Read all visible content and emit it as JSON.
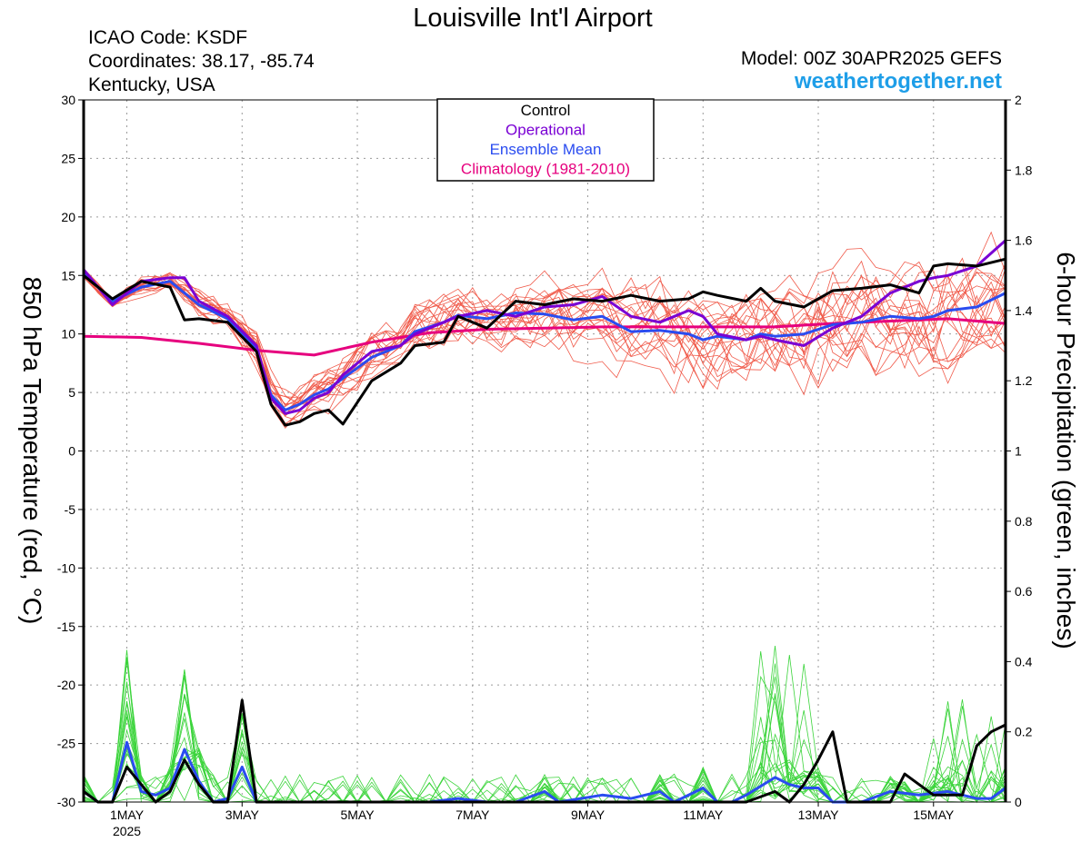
{
  "header": {
    "title": "Louisville Int'l Airport",
    "icao": "ICAO Code: KSDF",
    "coords": "Coordinates: 38.17, -85.74",
    "region": "Kentucky, USA",
    "model": "Model: 00Z 30APR2025 GEFS",
    "site": "weathertogether.net"
  },
  "colors": {
    "control": "#000000",
    "operational": "#7a00d4",
    "ensemble_mean": "#2a4cf0",
    "climatology": "#e6007e",
    "members_temp": "#f05a4a",
    "members_precip": "#3bd43b",
    "site": "#1e9ee8"
  },
  "chart_data": {
    "type": "line",
    "title": "Louisville Int'l Airport",
    "ylabel": "850 hPa Temperature (red, °C)",
    "y2label": "6-hour Precipitation (green, inches)",
    "ylim": [
      -30,
      30
    ],
    "y2lim": [
      0,
      2
    ],
    "yticks": [
      "30",
      "25",
      "20",
      "15",
      "10",
      "5",
      "0",
      "-5",
      "-10",
      "-15",
      "-20",
      "-25",
      "-30"
    ],
    "y2ticks": [
      "2",
      "1.8",
      "1.6",
      "1.4",
      "1.2",
      "1",
      "0.8",
      "0.6",
      "0.4",
      "0.2",
      "0"
    ],
    "xlim_days": [
      0,
      16
    ],
    "xticks": [
      {
        "label": "1MAY",
        "sub": "2025",
        "day": 0.75
      },
      {
        "label": "3MAY",
        "sub": "",
        "day": 2.75
      },
      {
        "label": "5MAY",
        "sub": "",
        "day": 4.75
      },
      {
        "label": "7MAY",
        "sub": "",
        "day": 6.75
      },
      {
        "label": "9MAY",
        "sub": "",
        "day": 8.75
      },
      {
        "label": "11MAY",
        "sub": "",
        "day": 10.75
      },
      {
        "label": "13MAY",
        "sub": "",
        "day": 12.75
      },
      {
        "label": "15MAY",
        "sub": "",
        "day": 14.75
      }
    ],
    "grid": true,
    "legend": {
      "position": "top-center",
      "entries": [
        {
          "name": "Control",
          "color": "#000000"
        },
        {
          "name": "Operational",
          "color": "#7a00d4"
        },
        {
          "name": "Ensemble Mean",
          "color": "#2a4cf0"
        },
        {
          "name": "Climatology (1981-2010)",
          "color": "#e6007e"
        }
      ]
    },
    "temperature": {
      "control": [
        [
          0,
          15
        ],
        [
          0.5,
          13
        ],
        [
          1,
          14.5
        ],
        [
          1.5,
          14
        ],
        [
          1.75,
          11.2
        ],
        [
          2,
          11.3
        ],
        [
          2.5,
          11
        ],
        [
          3,
          8.5
        ],
        [
          3.25,
          4
        ],
        [
          3.5,
          2.2
        ],
        [
          3.75,
          2.5
        ],
        [
          4,
          3.2
        ],
        [
          4.25,
          3.5
        ],
        [
          4.5,
          2.3
        ],
        [
          5,
          6
        ],
        [
          5.5,
          7.5
        ],
        [
          5.75,
          9
        ],
        [
          6.25,
          9.3
        ],
        [
          6.5,
          11.5
        ],
        [
          7,
          10.5
        ],
        [
          7.5,
          12.8
        ],
        [
          8,
          12.5
        ],
        [
          8.5,
          13
        ],
        [
          9,
          12.8
        ],
        [
          9.5,
          13.3
        ],
        [
          10,
          12.8
        ],
        [
          10.5,
          13
        ],
        [
          10.75,
          13.6
        ],
        [
          11,
          13.3
        ],
        [
          11.5,
          12.8
        ],
        [
          11.75,
          13.9
        ],
        [
          12,
          12.8
        ],
        [
          12.5,
          12.3
        ],
        [
          13,
          13.7
        ],
        [
          13.5,
          13.9
        ],
        [
          14,
          14.2
        ],
        [
          14.5,
          13.5
        ],
        [
          14.75,
          15.8
        ],
        [
          15,
          16
        ],
        [
          15.5,
          15.8
        ],
        [
          16,
          16.4
        ]
      ],
      "operational": [
        [
          0,
          15.5
        ],
        [
          0.5,
          12.5
        ],
        [
          1,
          14.5
        ],
        [
          1.5,
          14.8
        ],
        [
          1.75,
          14.8
        ],
        [
          2,
          12.8
        ],
        [
          2.5,
          11.5
        ],
        [
          3,
          9
        ],
        [
          3.25,
          4.5
        ],
        [
          3.5,
          3.2
        ],
        [
          3.75,
          3.5
        ],
        [
          4,
          4.5
        ],
        [
          4.25,
          5
        ],
        [
          4.5,
          6.5
        ],
        [
          5,
          8.5
        ],
        [
          5.5,
          9
        ],
        [
          5.75,
          10
        ],
        [
          6.25,
          11
        ],
        [
          6.5,
          11.5
        ],
        [
          7,
          12
        ],
        [
          7.5,
          11.5
        ],
        [
          8,
          12.3
        ],
        [
          8.5,
          12.5
        ],
        [
          9,
          13.2
        ],
        [
          9.5,
          11.5
        ],
        [
          10,
          11
        ],
        [
          10.5,
          12
        ],
        [
          10.75,
          11.5
        ],
        [
          11,
          10
        ],
        [
          11.5,
          9.5
        ],
        [
          11.75,
          9.8
        ],
        [
          12,
          9.5
        ],
        [
          12.5,
          9
        ],
        [
          13,
          10.5
        ],
        [
          13.5,
          11.5
        ],
        [
          14,
          13.5
        ],
        [
          14.5,
          14.5
        ],
        [
          14.75,
          14.8
        ],
        [
          15,
          15
        ],
        [
          15.5,
          15.8
        ],
        [
          16,
          18
        ]
      ],
      "ensemble_mean": [
        [
          0,
          15.2
        ],
        [
          0.5,
          12.8
        ],
        [
          1,
          14
        ],
        [
          1.5,
          14.5
        ],
        [
          1.75,
          13.5
        ],
        [
          2,
          12.5
        ],
        [
          2.5,
          11.3
        ],
        [
          3,
          8.8
        ],
        [
          3.25,
          4.8
        ],
        [
          3.5,
          3.5
        ],
        [
          3.75,
          4
        ],
        [
          4,
          4.8
        ],
        [
          4.25,
          5.3
        ],
        [
          4.5,
          6.2
        ],
        [
          5,
          8
        ],
        [
          5.5,
          9
        ],
        [
          5.75,
          10.2
        ],
        [
          6.25,
          11
        ],
        [
          6.5,
          11.6
        ],
        [
          7,
          11.3
        ],
        [
          7.5,
          11.8
        ],
        [
          8,
          11.7
        ],
        [
          8.5,
          11.2
        ],
        [
          9,
          11.5
        ],
        [
          9.5,
          10.2
        ],
        [
          10,
          10.3
        ],
        [
          10.5,
          10
        ],
        [
          10.75,
          9.5
        ],
        [
          11,
          9.8
        ],
        [
          11.5,
          9.5
        ],
        [
          11.75,
          10
        ],
        [
          12,
          9.8
        ],
        [
          12.5,
          10
        ],
        [
          13,
          10.8
        ],
        [
          13.5,
          11
        ],
        [
          14,
          11.5
        ],
        [
          14.5,
          11.3
        ],
        [
          14.75,
          11.5
        ],
        [
          15,
          12
        ],
        [
          15.5,
          12.3
        ],
        [
          16,
          13.5
        ]
      ],
      "climatology": [
        [
          0,
          9.8
        ],
        [
          1,
          9.7
        ],
        [
          2,
          9.2
        ],
        [
          3,
          8.6
        ],
        [
          4,
          8.2
        ],
        [
          5,
          9.3
        ],
        [
          6,
          10.1
        ],
        [
          7,
          10.4
        ],
        [
          8,
          10.5
        ],
        [
          9,
          10.6
        ],
        [
          10,
          10.6
        ],
        [
          11,
          10.6
        ],
        [
          12,
          10.6
        ],
        [
          13,
          10.9
        ],
        [
          14,
          11.1
        ],
        [
          15,
          11.3
        ],
        [
          16,
          10.9
        ]
      ]
    },
    "precipitation": {
      "control": [
        [
          0,
          0.03
        ],
        [
          0.25,
          0
        ],
        [
          0.5,
          0
        ],
        [
          0.75,
          0.1
        ],
        [
          1,
          0.05
        ],
        [
          1.25,
          0
        ],
        [
          1.5,
          0.03
        ],
        [
          1.75,
          0.12
        ],
        [
          2,
          0.05
        ],
        [
          2.25,
          0
        ],
        [
          2.5,
          0
        ],
        [
          2.75,
          0.29
        ],
        [
          3,
          0
        ],
        [
          3.25,
          0
        ],
        [
          4,
          0
        ],
        [
          5,
          0
        ],
        [
          6,
          0
        ],
        [
          7,
          0
        ],
        [
          8,
          0
        ],
        [
          9,
          0
        ],
        [
          10,
          0
        ],
        [
          11,
          0
        ],
        [
          11.5,
          0
        ],
        [
          12,
          0.03
        ],
        [
          12.25,
          0
        ],
        [
          12.5,
          0.05
        ],
        [
          12.75,
          0.12
        ],
        [
          13,
          0.2
        ],
        [
          13.25,
          0
        ],
        [
          13.5,
          0
        ],
        [
          14,
          0
        ],
        [
          14.25,
          0.08
        ],
        [
          14.5,
          0.05
        ],
        [
          14.75,
          0.02
        ],
        [
          15,
          0.02
        ],
        [
          15.25,
          0.02
        ],
        [
          15.5,
          0.16
        ],
        [
          15.75,
          0.2
        ],
        [
          16,
          0.22
        ]
      ],
      "ensemble_mean": [
        [
          0,
          0.03
        ],
        [
          0.25,
          0
        ],
        [
          0.5,
          0
        ],
        [
          0.75,
          0.17
        ],
        [
          1,
          0.03
        ],
        [
          1.25,
          0.02
        ],
        [
          1.5,
          0.04
        ],
        [
          1.75,
          0.15
        ],
        [
          2,
          0.06
        ],
        [
          2.25,
          0
        ],
        [
          2.5,
          0.01
        ],
        [
          2.75,
          0.1
        ],
        [
          3,
          0
        ],
        [
          4,
          0
        ],
        [
          5,
          0
        ],
        [
          6,
          0
        ],
        [
          6.5,
          0.01
        ],
        [
          7,
          0
        ],
        [
          7.5,
          0
        ],
        [
          8,
          0.03
        ],
        [
          8.25,
          0
        ],
        [
          9,
          0.02
        ],
        [
          9.5,
          0.01
        ],
        [
          10,
          0.03
        ],
        [
          10.25,
          0
        ],
        [
          10.75,
          0.04
        ],
        [
          11,
          0
        ],
        [
          11.25,
          0
        ],
        [
          11.5,
          0.02
        ],
        [
          12,
          0.07
        ],
        [
          12.25,
          0.05
        ],
        [
          12.5,
          0.04
        ],
        [
          12.75,
          0.04
        ],
        [
          13,
          0
        ],
        [
          13.5,
          0
        ],
        [
          14,
          0.03
        ],
        [
          14.5,
          0.02
        ],
        [
          15,
          0.03
        ],
        [
          15.25,
          0.02
        ],
        [
          15.5,
          0.01
        ],
        [
          15.75,
          0.01
        ],
        [
          16,
          0.04
        ]
      ]
    }
  }
}
